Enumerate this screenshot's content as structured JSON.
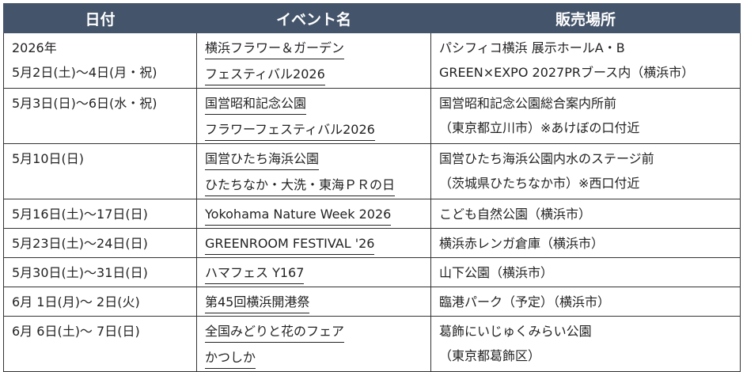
{
  "header": {
    "date": "日付",
    "event": "イベント名",
    "venue": "販売場所"
  },
  "rows": [
    {
      "date": [
        "2026年",
        "5月2日(土)～4日(月・祝)"
      ],
      "event": [
        "横浜フラワー＆ガーデン",
        "フェスティバル2026"
      ],
      "venue": [
        "パシフィコ横浜 展示ホールA・B",
        "GREEN×EXPO 2027PRブース内（横浜市）"
      ]
    },
    {
      "date": [
        "5月3日(日)～6日(水・祝)"
      ],
      "event": [
        "国営昭和記念公園",
        "フラワーフェスティバル2026"
      ],
      "venue": [
        "国営昭和記念公園総合案内所前",
        "（東京都立川市）※あけぼの口付近"
      ]
    },
    {
      "date": [
        "5月10日(日)"
      ],
      "event": [
        "国営ひたち海浜公園",
        "ひたちなか・大洗・東海ＰＲの日"
      ],
      "venue": [
        "国営ひたち海浜公園内水のステージ前",
        "（茨城県ひたちなか市）※西口付近"
      ]
    },
    {
      "date": [
        "5月16日(土)～17日(日)"
      ],
      "event": [
        "Yokohama Nature Week 2026"
      ],
      "venue": [
        "こども自然公園（横浜市）"
      ]
    },
    {
      "date": [
        "5月23日(土)～24日(日)"
      ],
      "event": [
        "GREENROOM FESTIVAL '26"
      ],
      "venue": [
        "横浜赤レンガ倉庫（横浜市）"
      ]
    },
    {
      "date": [
        "5月30日(土)～31日(日)"
      ],
      "event": [
        "ハマフェス Y167"
      ],
      "venue": [
        "山下公園（横浜市）"
      ]
    },
    {
      "date": [
        "6月 1日(月)～ 2日(火)"
      ],
      "event": [
        "第45回横浜開港祭"
      ],
      "venue": [
        "臨港パーク（予定）（横浜市）"
      ]
    },
    {
      "date": [
        "6月 6日(土)～ 7日(日)"
      ],
      "event": [
        "全国みどりと花のフェア",
        "かつしか"
      ],
      "venue": [
        "葛飾にいじゅくみらい公園",
        "（東京都葛飾区）"
      ]
    }
  ]
}
